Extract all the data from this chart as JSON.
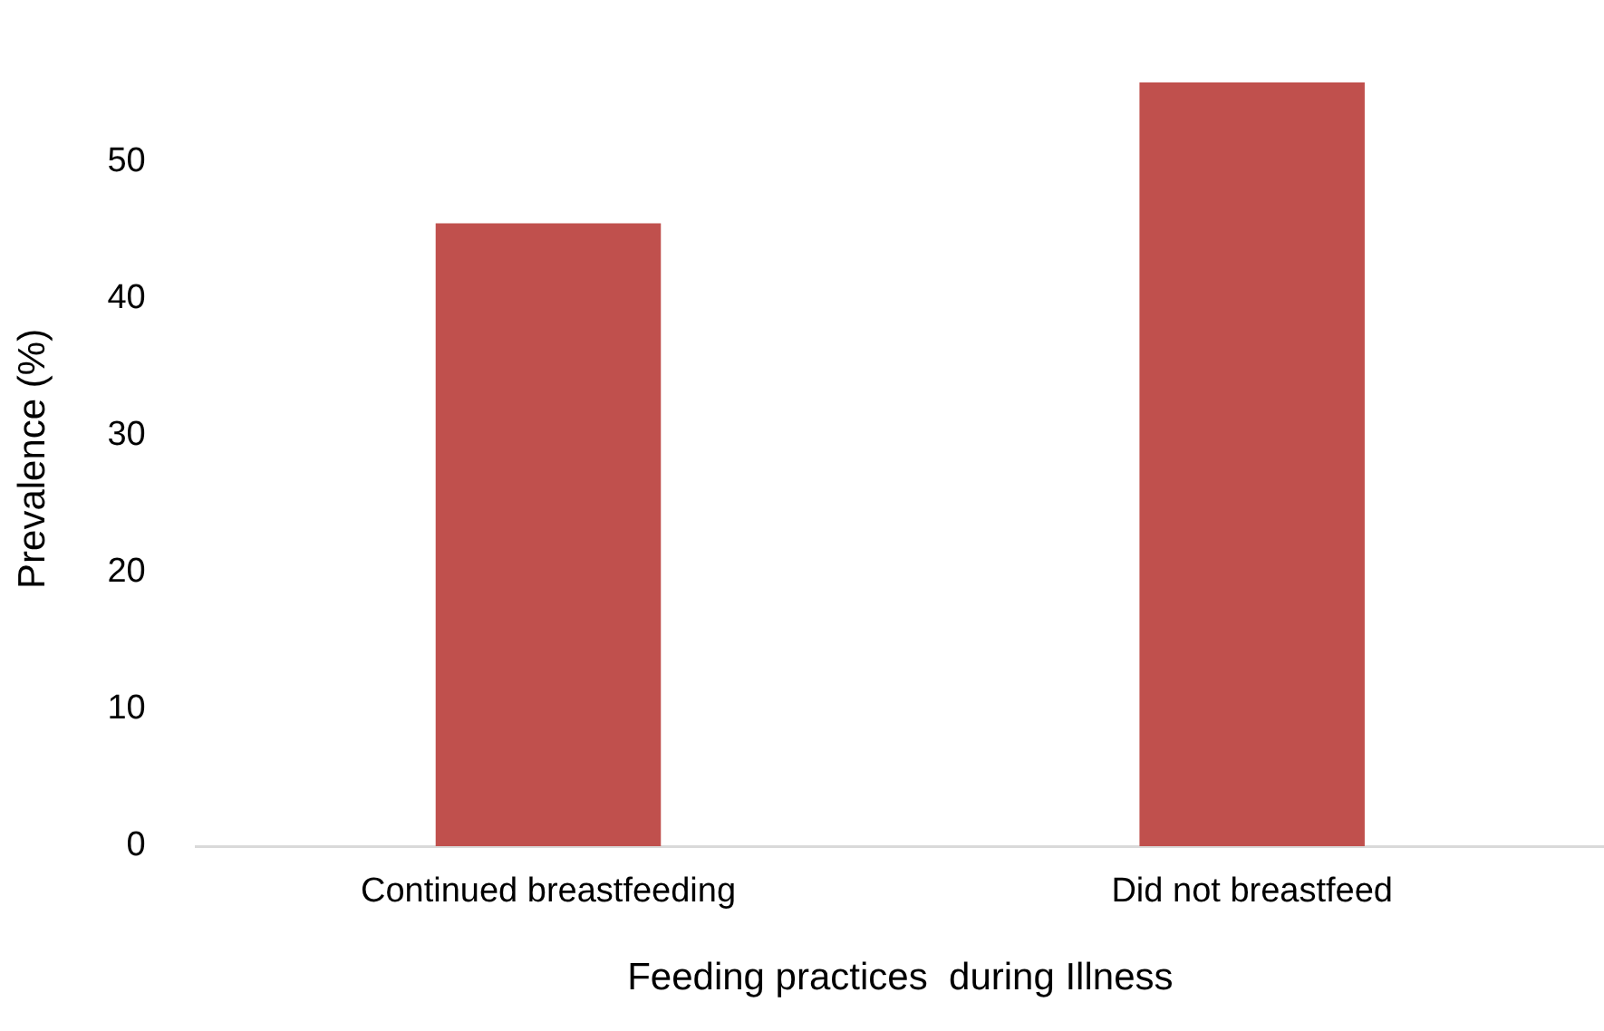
{
  "chart_data": {
    "type": "bar",
    "xlabel": "Feeding practices  during Illness",
    "ylabel": "Prevalence (%)",
    "categories": [
      "Continued breastfeeding",
      "Did not breastfeed"
    ],
    "values": [
      45.5,
      55.8
    ],
    "color": "#c0504d",
    "ylim": [
      0,
      56.6
    ],
    "yticks": [
      0,
      10,
      20,
      30,
      40,
      50
    ],
    "grid": false,
    "legend": false
  }
}
